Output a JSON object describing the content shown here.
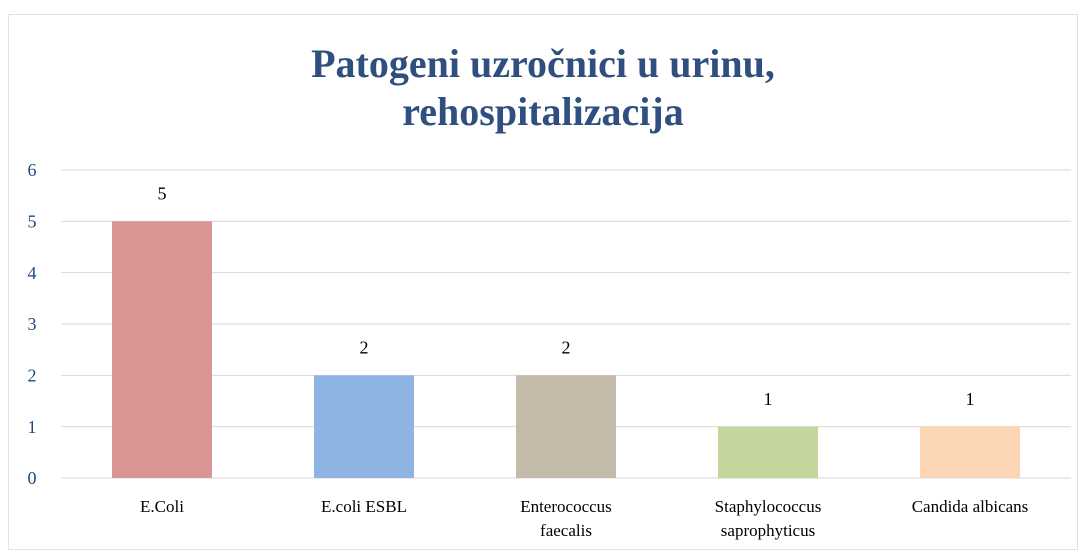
{
  "chart_data": {
    "type": "bar",
    "title": "Patogeni uzročnici u urinu, rehospitalizacija",
    "categories": [
      "E.Coli",
      "E.coli ESBL",
      "Enterococcus faecalis",
      "Staphylococcus saprophyticus",
      "Candida albicans"
    ],
    "values": [
      5,
      2,
      2,
      1,
      1
    ],
    "colors": [
      "#d99594",
      "#8eb4e3",
      "#c4baa9",
      "#c3d69b",
      "#fcd5b5"
    ],
    "ylim": [
      0,
      6
    ],
    "yticks": [
      0,
      1,
      2,
      3,
      4,
      5,
      6
    ],
    "grid": true
  }
}
